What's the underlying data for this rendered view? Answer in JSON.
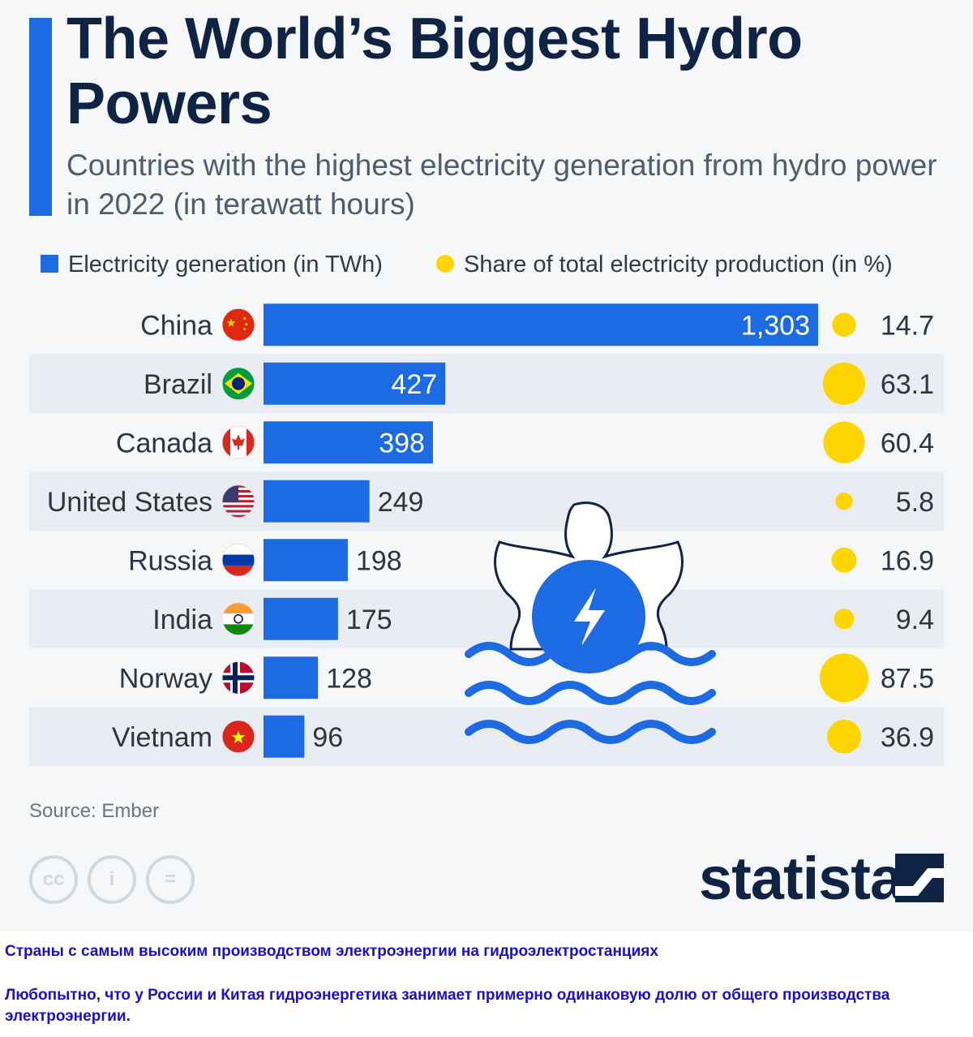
{
  "header": {
    "title": "The World’s Biggest Hydro Powers",
    "subtitle": "Countries with the highest electricity generation from hydro power in 2022 (in terawatt hours)"
  },
  "legend": {
    "generation": "Electricity generation (in TWh)",
    "share": "Share of total electricity production (in %)"
  },
  "colors": {
    "bar": "#1d6be3",
    "dot": "#ffd500",
    "title": "#0f2444"
  },
  "chart_data": {
    "type": "bar",
    "orientation": "horizontal",
    "categories": [
      "China",
      "Brazil",
      "Canada",
      "United States",
      "Russia",
      "India",
      "Norway",
      "Vietnam"
    ],
    "series": [
      {
        "name": "Electricity generation (in TWh)",
        "values": [
          1303,
          427,
          398,
          249,
          198,
          175,
          128,
          96
        ],
        "labels": [
          "1,303",
          "427",
          "398",
          "249",
          "198",
          "175",
          "128",
          "96"
        ]
      },
      {
        "name": "Share of total electricity production (in %)",
        "values": [
          14.7,
          63.1,
          60.4,
          5.8,
          16.9,
          9.4,
          87.5,
          36.9
        ],
        "labels": [
          "14.7",
          "63.1",
          "60.4",
          "5.8",
          "16.9",
          "9.4",
          "87.5",
          "36.9"
        ]
      }
    ],
    "flag_icons": [
      "china-flag-icon",
      "brazil-flag-icon",
      "canada-flag-icon",
      "usa-flag-icon",
      "russia-flag-icon",
      "india-flag-icon",
      "norway-flag-icon",
      "vietnam-flag-icon"
    ],
    "xlim": [
      0,
      1303
    ],
    "grid": false,
    "legend_position": "top"
  },
  "footer": {
    "source": "Source: Ember",
    "license_icons": [
      "cc-icon",
      "by-icon",
      "nd-icon"
    ],
    "license_glyphs": [
      "cc",
      "i",
      "="
    ],
    "logo": "statista"
  },
  "annotation": {
    "line1": "Страны с самым высоким производством электроэнергии на гидроэлектростанциях",
    "line2": "Любопытно, что у России и Китая гидроэнергетика занимает примерно одинаковую долю от общего производства электроэнергии."
  }
}
